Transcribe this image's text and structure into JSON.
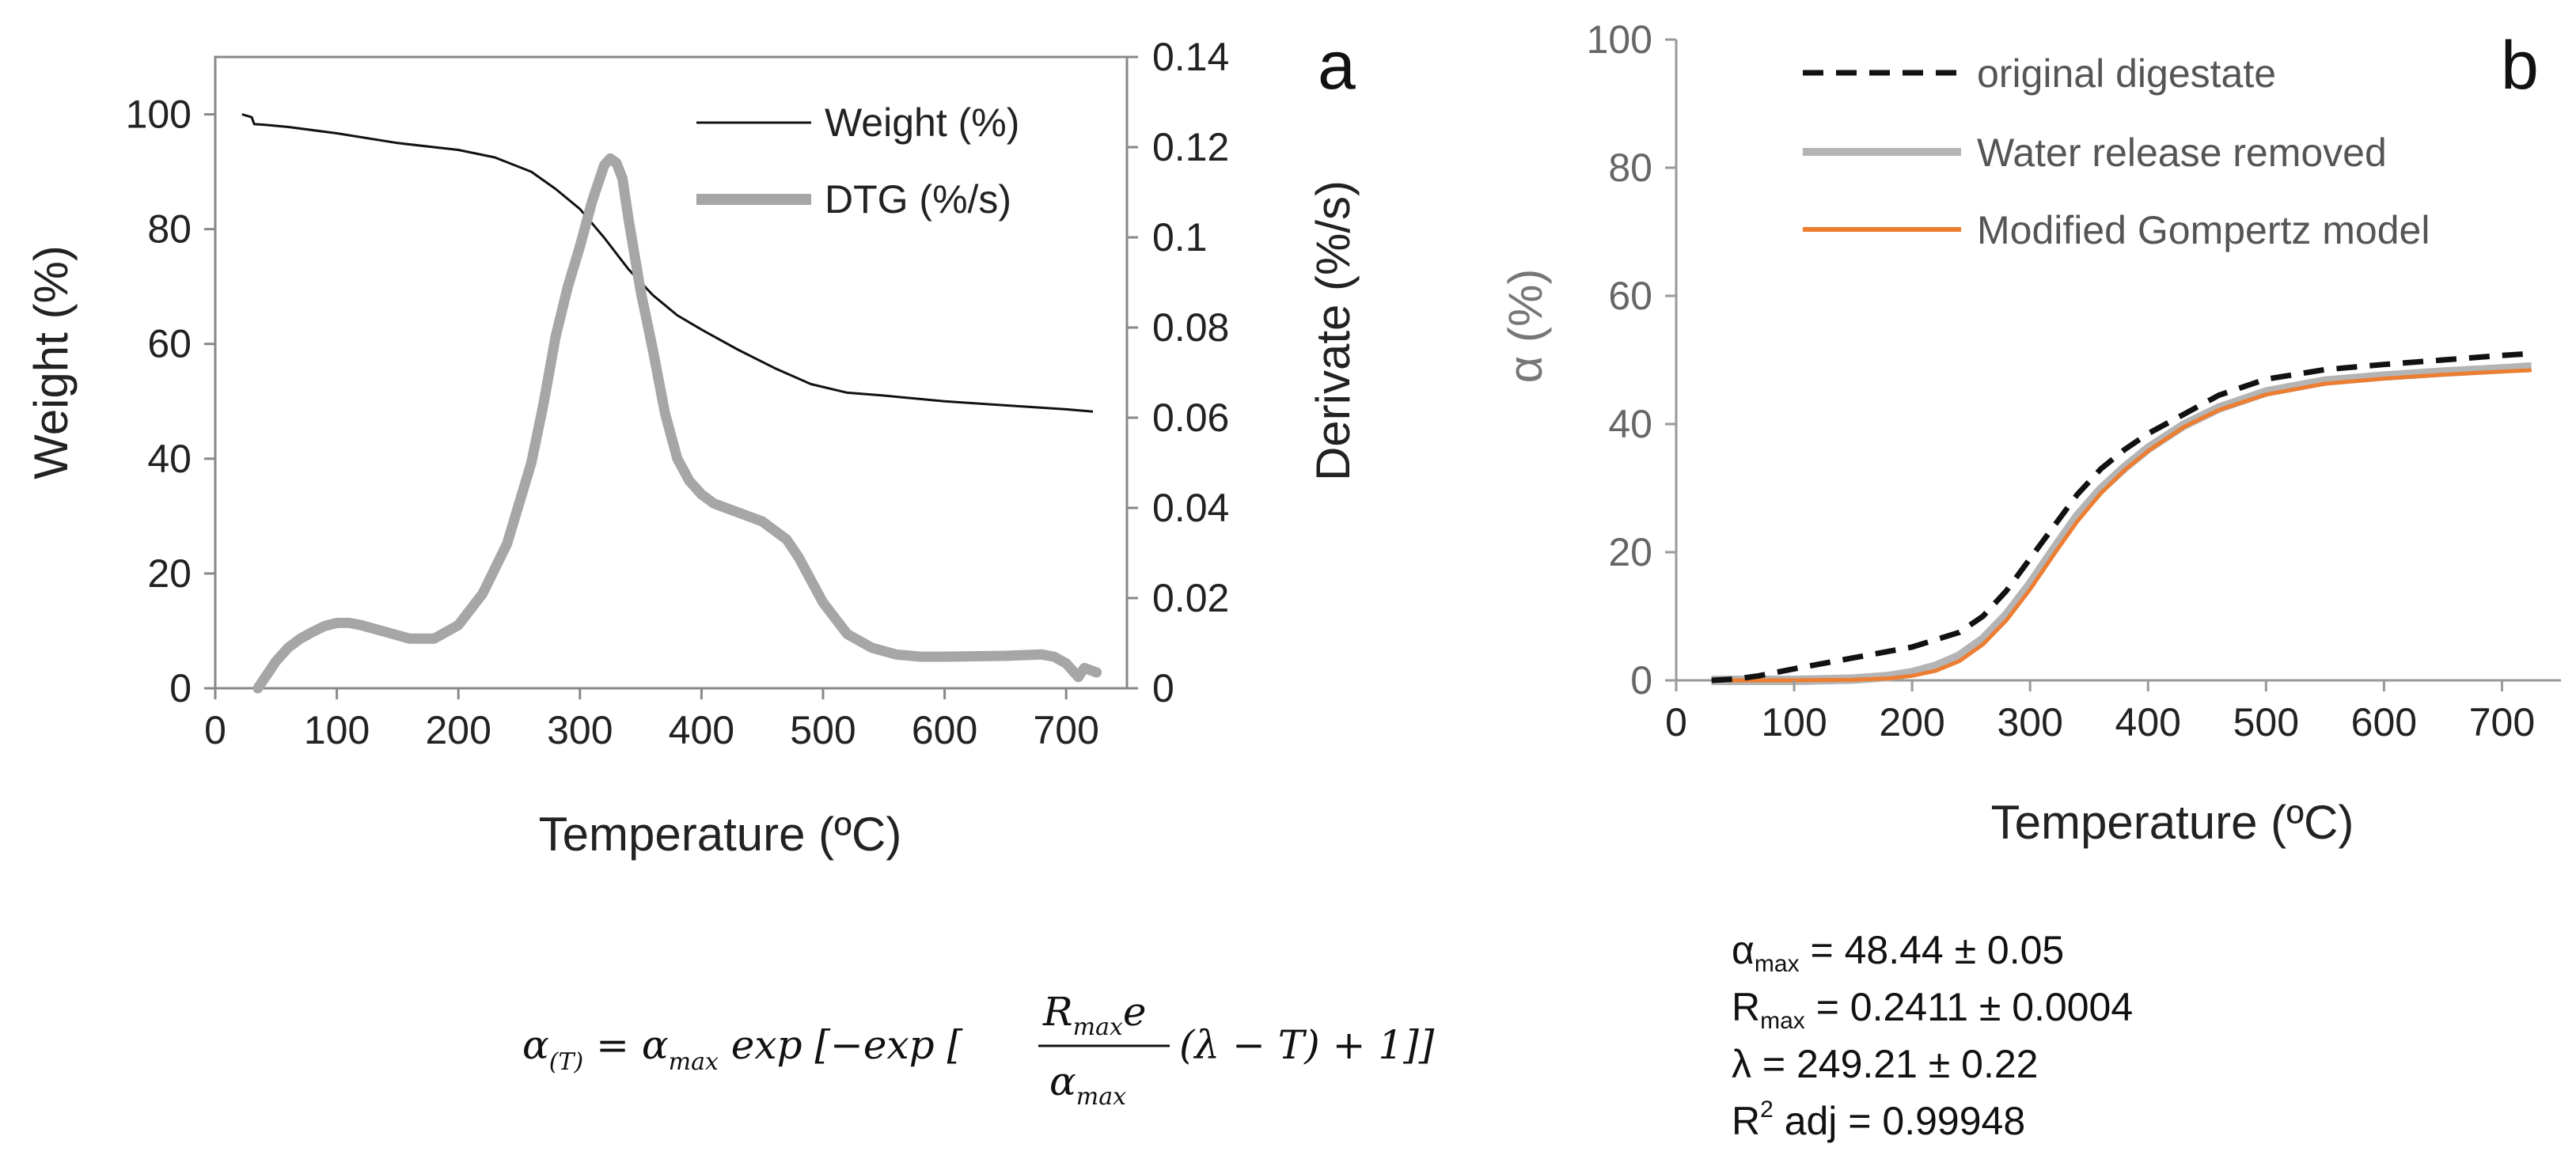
{
  "chart_data": [
    {
      "id": "a",
      "type": "line",
      "panel_label": "a",
      "xlabel": "Temperature (ºC)",
      "ylabel": "Weight (%)",
      "y2label": "Derivate (%/s)",
      "xlim": [
        0,
        750
      ],
      "ylim": [
        0,
        110
      ],
      "y2lim": [
        0,
        0.14
      ],
      "x_ticks": [
        "0",
        "100",
        "200",
        "300",
        "400",
        "500",
        "600",
        "700"
      ],
      "y_ticks": [
        "0",
        "20",
        "40",
        "60",
        "80",
        "100"
      ],
      "y2_ticks": [
        "0",
        "0.02",
        "0.04",
        "0.06",
        "0.08",
        "0.1",
        "0.12",
        "0.14"
      ],
      "legend_position": "top-right",
      "series": [
        {
          "name": "Weight (%)",
          "axis": "left",
          "color": "#111111",
          "x": [
            22,
            30,
            32,
            40,
            60,
            100,
            150,
            200,
            230,
            260,
            280,
            300,
            320,
            340,
            360,
            380,
            400,
            430,
            460,
            490,
            520,
            550,
            600,
            650,
            700,
            722
          ],
          "y": [
            100,
            99.5,
            98.3,
            98.2,
            97.8,
            96.7,
            95.0,
            93.8,
            92.5,
            90.0,
            87.0,
            83.5,
            78.5,
            73.0,
            68.5,
            65.0,
            62.5,
            59.0,
            55.8,
            53.0,
            51.5,
            51.0,
            50.0,
            49.3,
            48.6,
            48.2
          ]
        },
        {
          "name": "DTG (%/s)",
          "axis": "right",
          "color": "#a6a6a6",
          "x": [
            35,
            40,
            50,
            60,
            70,
            80,
            90,
            100,
            110,
            120,
            140,
            160,
            180,
            200,
            220,
            240,
            260,
            270,
            280,
            290,
            300,
            310,
            320,
            325,
            330,
            335,
            340,
            350,
            360,
            370,
            380,
            390,
            400,
            410,
            420,
            430,
            450,
            470,
            480,
            490,
            500,
            520,
            540,
            560,
            580,
            600,
            650,
            680,
            690,
            700,
            705,
            710,
            715,
            720,
            725
          ],
          "y": [
            0.0,
            0.002,
            0.006,
            0.009,
            0.011,
            0.0125,
            0.0138,
            0.0145,
            0.0145,
            0.014,
            0.0125,
            0.011,
            0.011,
            0.014,
            0.021,
            0.032,
            0.05,
            0.063,
            0.078,
            0.089,
            0.098,
            0.108,
            0.116,
            0.1175,
            0.1165,
            0.113,
            0.104,
            0.088,
            0.075,
            0.061,
            0.051,
            0.046,
            0.043,
            0.041,
            0.04,
            0.039,
            0.037,
            0.033,
            0.029,
            0.024,
            0.019,
            0.012,
            0.009,
            0.0075,
            0.007,
            0.007,
            0.0072,
            0.0075,
            0.007,
            0.0055,
            0.004,
            0.0025,
            0.0045,
            0.004,
            0.0035
          ]
        }
      ]
    },
    {
      "id": "b",
      "type": "line",
      "panel_label": "b",
      "xlabel": "Temperature (ºC)",
      "ylabel": "α (%)",
      "xlim": [
        0,
        750
      ],
      "ylim": [
        0,
        100
      ],
      "x_ticks": [
        "0",
        "100",
        "200",
        "300",
        "400",
        "500",
        "600",
        "700"
      ],
      "y_ticks": [
        "0",
        "20",
        "40",
        "60",
        "80",
        "100"
      ],
      "legend_position": "top-right",
      "series": [
        {
          "name": "original digestate",
          "style": "dashed",
          "color": "#111111",
          "x": [
            30,
            50,
            70,
            100,
            150,
            200,
            240,
            260,
            280,
            300,
            320,
            340,
            360,
            380,
            400,
            430,
            460,
            500,
            550,
            600,
            650,
            700,
            725
          ],
          "y": [
            0,
            0.2,
            0.7,
            1.8,
            3.5,
            5.2,
            7.5,
            10,
            14,
            19,
            24,
            29,
            33,
            36,
            38.5,
            41.5,
            44.5,
            47,
            48.5,
            49.3,
            50.0,
            50.7,
            51.0
          ]
        },
        {
          "name": "Water release removed",
          "style": "solid-thick",
          "color": "#b4b4b4",
          "x": [
            30,
            100,
            150,
            180,
            200,
            220,
            240,
            260,
            280,
            300,
            320,
            340,
            360,
            380,
            400,
            430,
            460,
            500,
            550,
            600,
            650,
            700,
            725
          ],
          "y": [
            0,
            0,
            0.2,
            0.6,
            1.2,
            2.2,
            3.8,
            6.4,
            10.2,
            15,
            20.4,
            25.6,
            29.8,
            33.2,
            36.2,
            39.8,
            42.5,
            45.0,
            46.7,
            47.5,
            48.1,
            48.6,
            48.9
          ]
        },
        {
          "name": "Modified Gompertz model",
          "style": "solid",
          "color": "#ed7d31",
          "x": [
            30,
            100,
            150,
            180,
            200,
            220,
            240,
            260,
            280,
            300,
            320,
            340,
            360,
            380,
            400,
            430,
            460,
            500,
            550,
            600,
            650,
            700,
            725
          ],
          "y": [
            0,
            0,
            0.1,
            0.3,
            0.7,
            1.5,
            3.0,
            5.6,
            9.4,
            14.2,
            19.6,
            24.8,
            29.2,
            32.8,
            35.8,
            39.5,
            42.2,
            44.6,
            46.3,
            47.1,
            47.7,
            48.2,
            48.4
          ]
        }
      ],
      "parameters": [
        {
          "symbol": "α",
          "sub": "max",
          "sup": "",
          "text": " = 48.44 ± 0.05"
        },
        {
          "symbol": "R",
          "sub": "max",
          "sup": "",
          "text": " = 0.2411 ± 0.0004"
        },
        {
          "symbol": "λ",
          "sub": "",
          "sup": "",
          "text": " = 249.21 ± 0.22"
        },
        {
          "symbol": "R",
          "sub": "",
          "sup": "2",
          "text": " adj = 0.99948"
        }
      ]
    }
  ],
  "formula": {
    "lhs": "α",
    "lhs_sub": "(T)",
    "eq": " = ",
    "amax": "α",
    "amax_sub": "max",
    "exp1": " exp [−exp [",
    "num": "R",
    "num_sub": "max",
    "num_e": "e",
    "den": "α",
    "den_sub": "max",
    "tail": "(λ − T) + 1]]"
  }
}
